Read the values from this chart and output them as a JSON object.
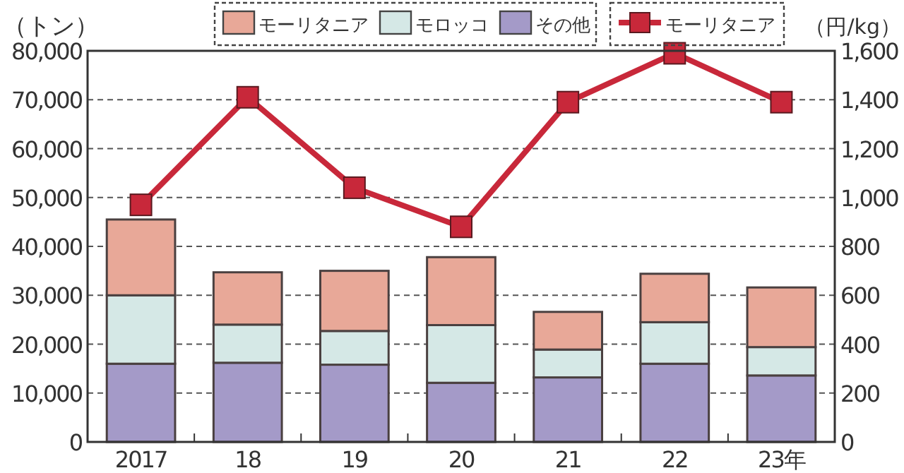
{
  "chart_data": {
    "type": "bar",
    "stacked": true,
    "ylabel": "（トン）",
    "y2label": "（円/kg）",
    "categories": [
      "2017",
      "18",
      "19",
      "20",
      "21",
      "22",
      "23年"
    ],
    "series": [
      {
        "name": "その他",
        "color": "#a49ac8",
        "values": [
          16000,
          16200,
          15800,
          12100,
          13200,
          16000,
          13600
        ]
      },
      {
        "name": "モロッコ",
        "color": "#d5e8e6",
        "values": [
          14000,
          7800,
          6900,
          11800,
          5700,
          8500,
          5800
        ]
      },
      {
        "name": "モーリタニア",
        "color": "#e8a898",
        "values": [
          15500,
          10700,
          12300,
          13900,
          7700,
          9900,
          12200
        ]
      },
      {
        "name": "モーリタニア",
        "type": "line",
        "axis": "y2",
        "color": "#c8283a",
        "marker": "square",
        "values": [
          970,
          1410,
          1040,
          880,
          1390,
          1590,
          1390
        ]
      }
    ],
    "ylim": [
      0,
      80000
    ],
    "yticks": [
      {
        "value": 0,
        "label": "0"
      },
      {
        "value": 10000,
        "label": "10,000"
      },
      {
        "value": 20000,
        "label": "20,000"
      },
      {
        "value": 30000,
        "label": "30,000"
      },
      {
        "value": 40000,
        "label": "40,000"
      },
      {
        "value": 50000,
        "label": "50,000"
      },
      {
        "value": 60000,
        "label": "60,000"
      },
      {
        "value": 70000,
        "label": "70,000"
      },
      {
        "value": 80000,
        "label": "80,000"
      }
    ],
    "y2lim": [
      0,
      1600
    ],
    "y2ticks": [
      {
        "value": 0,
        "label": "0"
      },
      {
        "value": 200,
        "label": "200"
      },
      {
        "value": 400,
        "label": "400"
      },
      {
        "value": 600,
        "label": "600"
      },
      {
        "value": 800,
        "label": "800"
      },
      {
        "value": 1000,
        "label": "1,000"
      },
      {
        "value": 1200,
        "label": "1,200"
      },
      {
        "value": 1400,
        "label": "1,400"
      },
      {
        "value": 1600,
        "label": "1,600"
      }
    ],
    "grid": "y",
    "legend": "top"
  }
}
